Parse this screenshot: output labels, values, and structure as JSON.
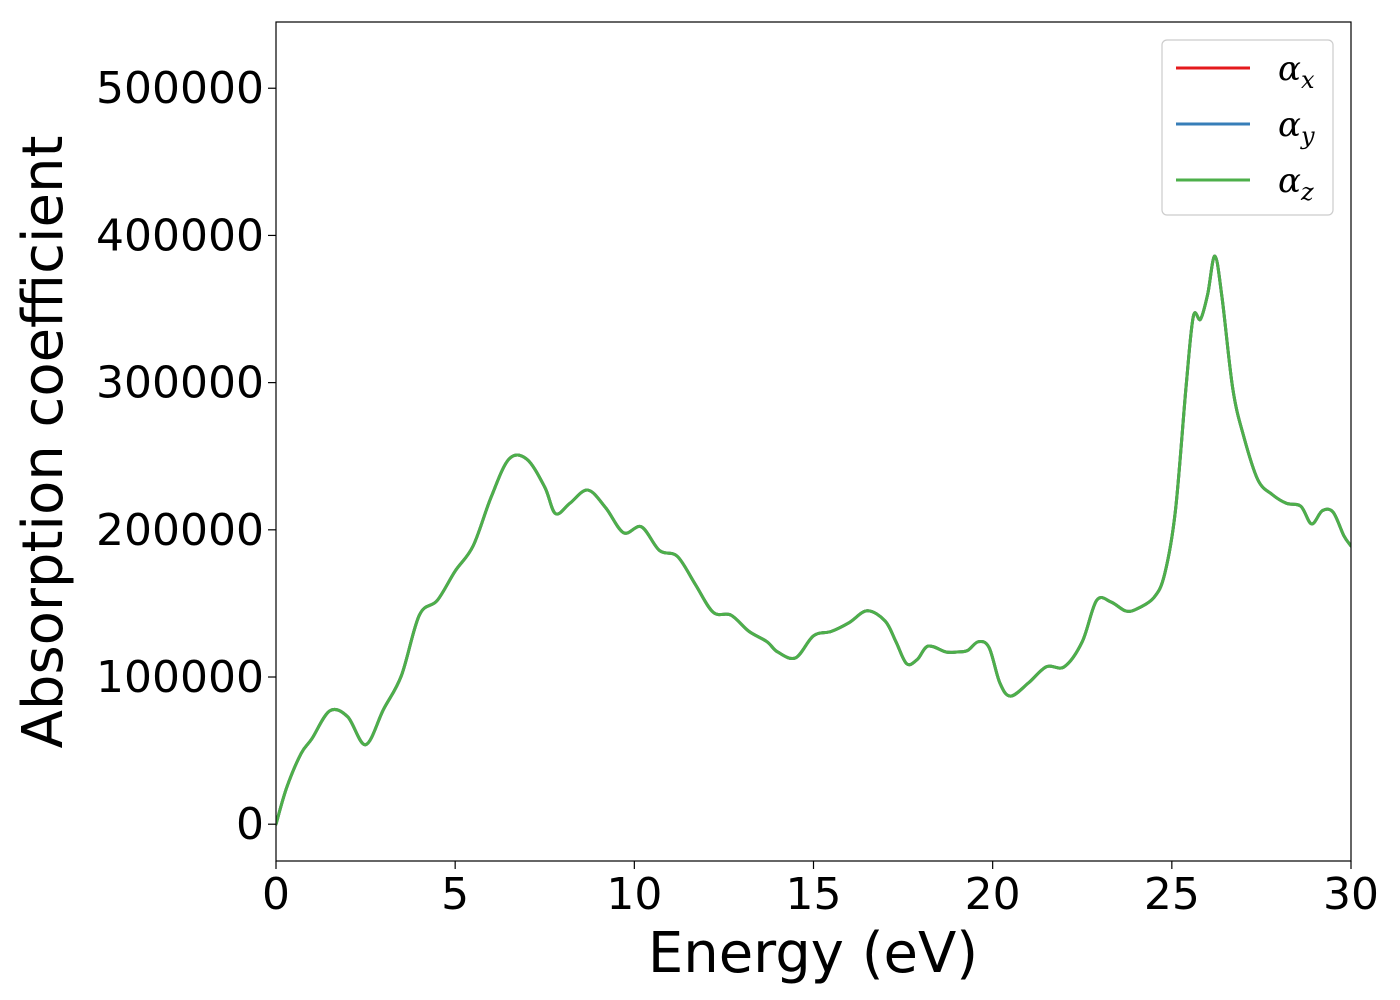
{
  "chart_data": {
    "type": "line",
    "title": "",
    "xlabel": "Energy (eV)",
    "ylabel": "Absorption coefficient",
    "xlim": [
      0,
      30
    ],
    "ylim": [
      -25000,
      545000
    ],
    "xticks": [
      0,
      5,
      10,
      15,
      20,
      25,
      30
    ],
    "xtick_labels": [
      "0",
      "5",
      "10",
      "15",
      "20",
      "25",
      "30"
    ],
    "yticks": [
      0,
      100000,
      200000,
      300000,
      400000,
      500000
    ],
    "ytick_labels": [
      "0",
      "100000",
      "200000",
      "300000",
      "400000",
      "500000"
    ],
    "grid": false,
    "legend_position": "top-right",
    "x": [
      0,
      0.3,
      0.7,
      1.0,
      1.5,
      2.0,
      2.5,
      3.0,
      3.5,
      4.0,
      4.5,
      5.0,
      5.5,
      6.0,
      6.5,
      7.0,
      7.5,
      7.8,
      8.2,
      8.7,
      9.2,
      9.7,
      10.2,
      10.7,
      11.2,
      11.7,
      12.2,
      12.7,
      13.2,
      13.7,
      14.0,
      14.5,
      15.0,
      15.5,
      16.0,
      16.5,
      17.0,
      17.3,
      17.6,
      17.9,
      18.2,
      18.7,
      19.0,
      19.3,
      19.6,
      19.9,
      20.2,
      20.5,
      21.0,
      21.5,
      22.0,
      22.5,
      22.9,
      23.3,
      23.7,
      24.0,
      24.5,
      24.8,
      25.1,
      25.4,
      25.6,
      25.8,
      26.0,
      26.2,
      26.4,
      26.7,
      27.0,
      27.4,
      27.8,
      28.2,
      28.6,
      28.9,
      29.2,
      29.5,
      29.8,
      30.0
    ],
    "series": [
      {
        "name": "α_x",
        "color": "#e41a1c",
        "values": [
          0,
          25000,
          48000,
          58000,
          77000,
          73000,
          54000,
          78000,
          101000,
          142000,
          152000,
          172000,
          189000,
          222000,
          248000,
          248000,
          229000,
          211000,
          218000,
          227000,
          215000,
          198000,
          202000,
          186000,
          182000,
          163000,
          144000,
          142000,
          131000,
          124000,
          117000,
          113000,
          128000,
          131000,
          137000,
          145000,
          138000,
          124000,
          109000,
          112000,
          121000,
          117000,
          117000,
          118000,
          124000,
          120000,
          96000,
          87000,
          96000,
          107000,
          107000,
          124000,
          152000,
          151000,
          145000,
          146000,
          154000,
          170000,
          213000,
          298000,
          345000,
          343000,
          360000,
          386000,
          358000,
          296000,
          264000,
          234000,
          224000,
          218000,
          216000,
          204000,
          213000,
          212000,
          196000,
          189000
        ]
      },
      {
        "name": "α_y",
        "color": "#377eb8",
        "values": [
          0,
          25000,
          48000,
          58000,
          77000,
          73000,
          54000,
          78000,
          101000,
          142000,
          152000,
          172000,
          189000,
          222000,
          248000,
          248000,
          229000,
          211000,
          218000,
          227000,
          215000,
          198000,
          202000,
          186000,
          182000,
          163000,
          144000,
          142000,
          131000,
          124000,
          117000,
          113000,
          128000,
          131000,
          137000,
          145000,
          138000,
          124000,
          109000,
          112000,
          121000,
          117000,
          117000,
          118000,
          124000,
          120000,
          96000,
          87000,
          96000,
          107000,
          107000,
          124000,
          152000,
          151000,
          145000,
          146000,
          154000,
          170000,
          213000,
          298000,
          345000,
          343000,
          360000,
          386000,
          358000,
          296000,
          264000,
          234000,
          224000,
          218000,
          216000,
          204000,
          213000,
          212000,
          196000,
          189000
        ]
      },
      {
        "name": "α_z",
        "color": "#4daf4a",
        "values": [
          0,
          25000,
          48000,
          58000,
          77000,
          73000,
          54000,
          78000,
          101000,
          142000,
          152000,
          172000,
          189000,
          222000,
          248000,
          248000,
          229000,
          211000,
          218000,
          227000,
          215000,
          198000,
          202000,
          186000,
          182000,
          163000,
          144000,
          142000,
          131000,
          124000,
          117000,
          113000,
          128000,
          131000,
          137000,
          145000,
          138000,
          124000,
          109000,
          112000,
          121000,
          117000,
          117000,
          118000,
          124000,
          120000,
          96000,
          87000,
          96000,
          107000,
          107000,
          124000,
          152000,
          151000,
          145000,
          146000,
          154000,
          170000,
          213000,
          298000,
          345000,
          343000,
          360000,
          386000,
          358000,
          296000,
          264000,
          234000,
          224000,
          218000,
          216000,
          204000,
          213000,
          212000,
          196000,
          189000
        ]
      }
    ],
    "legend": [
      {
        "symbol": "α",
        "sub": "x",
        "color": "#e41a1c"
      },
      {
        "symbol": "α",
        "sub": "y",
        "color": "#377eb8"
      },
      {
        "symbol": "α",
        "sub": "z",
        "color": "#4daf4a"
      }
    ]
  }
}
